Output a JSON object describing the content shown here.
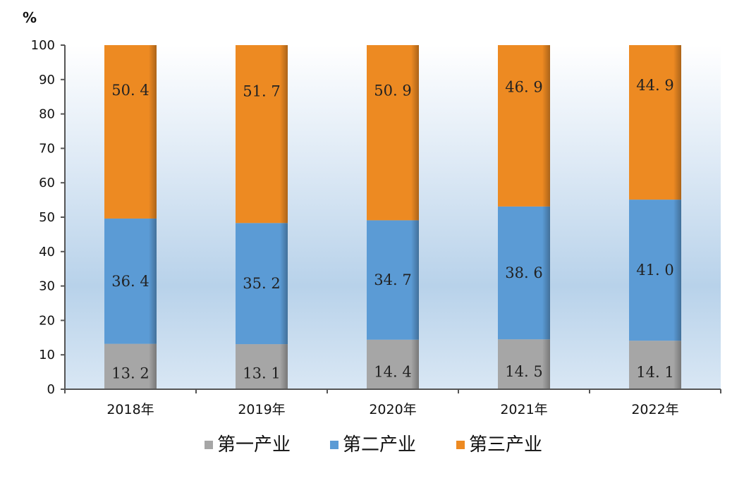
{
  "chart_data": {
    "type": "bar",
    "stacked": true,
    "ylabel": "%",
    "ylim": [
      0,
      100
    ],
    "yticks": [
      0,
      10,
      20,
      30,
      40,
      50,
      60,
      70,
      80,
      90,
      100
    ],
    "categories": [
      "2018年",
      "2019年",
      "2020年",
      "2021年",
      "2022年"
    ],
    "series": [
      {
        "name": "第一产业",
        "color": "#a6a6a6",
        "values": [
          13.2,
          13.1,
          14.4,
          14.5,
          14.1
        ]
      },
      {
        "name": "第二产业",
        "color": "#5b9bd5",
        "values": [
          36.4,
          35.2,
          34.7,
          38.6,
          41.0
        ]
      },
      {
        "name": "第三产业",
        "color": "#ed8a22",
        "values": [
          50.4,
          51.7,
          50.9,
          46.9,
          44.9
        ]
      }
    ],
    "data_labels": [
      [
        "13. 2",
        "13. 1",
        "14. 4",
        "14. 5",
        "14. 1"
      ],
      [
        "36. 4",
        "35. 2",
        "34. 7",
        "38. 6",
        "41. 0"
      ],
      [
        "50. 4",
        "51. 7",
        "50. 9",
        "46. 9",
        "44. 9"
      ]
    ],
    "legend_position": "bottom",
    "grid": false
  }
}
